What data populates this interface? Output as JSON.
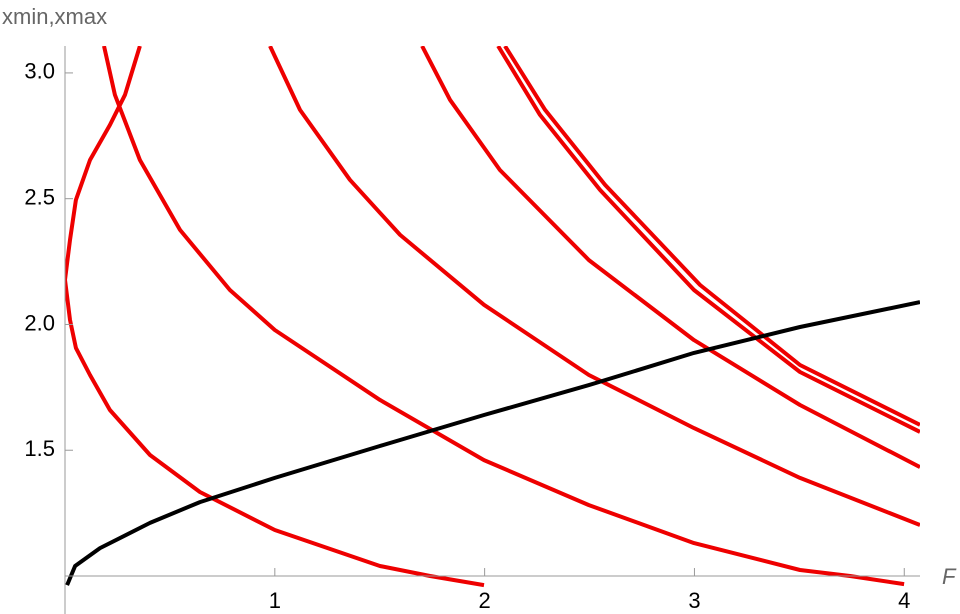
{
  "chart_data": {
    "type": "line",
    "y_label": "xmin,xmax",
    "x_label": "F",
    "xlim": [
      0,
      4.075
    ],
    "ylim": [
      0.849,
      3.107
    ],
    "xticks": [
      1,
      2,
      3,
      4
    ],
    "yticks": [
      1.5,
      {
        "value": 2,
        "label": "2.0"
      },
      2.5,
      {
        "value": 3,
        "label": "3.0"
      }
    ],
    "x_axis_at_y": 1,
    "series": [
      {
        "color": "#ee0000",
        "x": [
          0.357,
          0.286,
          0.214,
          0.119,
          0.052,
          0.024,
          0,
          0.024,
          0.052,
          0.119,
          0.214,
          0.405,
          0.643,
          1.0,
          1.501,
          1.74,
          1.997
        ],
        "values": [
          3.107,
          2.913,
          2.793,
          2.654,
          2.495,
          2.336,
          2.177,
          2.018,
          1.907,
          1.799,
          1.66,
          1.481,
          1.334,
          1.183,
          1.04,
          1.0,
          0.964
        ]
      },
      {
        "color": "#ee0000",
        "x": [
          0.186,
          0.238,
          0.357,
          0.548,
          0.786,
          1.0,
          1.501,
          1.997,
          2.497,
          2.998,
          3.503,
          3.742,
          3.999
        ],
        "values": [
          3.107,
          2.913,
          2.654,
          2.376,
          2.137,
          1.978,
          1.7,
          1.461,
          1.282,
          1.131,
          1.024,
          1.0,
          0.968
        ]
      },
      {
        "color": "#ee0000",
        "x": [
          0.977,
          1.12,
          1.358,
          1.597,
          1.997,
          2.497,
          2.998,
          3.503,
          4.075
        ],
        "values": [
          3.107,
          2.853,
          2.575,
          2.356,
          2.078,
          1.799,
          1.588,
          1.39,
          1.203
        ]
      },
      {
        "color": "#ee0000",
        "x": [
          1.702,
          1.835,
          2.073,
          2.497,
          2.998,
          3.503,
          4.075
        ],
        "values": [
          3.107,
          2.893,
          2.614,
          2.256,
          1.938,
          1.68,
          1.433
        ]
      },
      {
        "color": "#ee0000",
        "x": [
          2.064,
          2.264,
          2.55,
          2.998,
          3.503,
          4.075
        ],
        "values": [
          3.107,
          2.833,
          2.535,
          2.137,
          1.811,
          1.573
        ]
      },
      {
        "color": "#ee0000",
        "x": [
          2.097,
          2.288,
          2.574,
          3.027,
          3.503,
          4.075
        ],
        "values": [
          3.107,
          2.853,
          2.555,
          2.157,
          1.839,
          1.601
        ]
      },
      {
        "color": "#000000",
        "x": [
          0.01,
          0.048,
          0.167,
          0.405,
          0.643,
          1.0,
          1.501,
          1.997,
          2.497,
          2.998,
          3.503,
          4.075
        ],
        "values": [
          0.964,
          1.04,
          1.111,
          1.211,
          1.294,
          1.39,
          1.517,
          1.64,
          1.759,
          1.887,
          1.99,
          2.089
        ]
      }
    ]
  }
}
